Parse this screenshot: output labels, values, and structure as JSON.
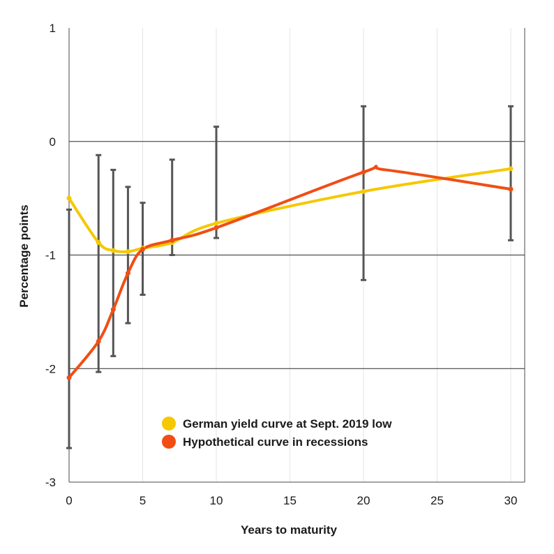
{
  "chart_data": {
    "type": "line",
    "xlabel": "Years to maturity",
    "ylabel": "Percentage points",
    "xlim": [
      0,
      31
    ],
    "ylim": [
      -3,
      1
    ],
    "x_ticks": [
      0,
      5,
      10,
      15,
      20,
      25,
      30
    ],
    "y_ticks": [
      1,
      0,
      -1,
      -2,
      -3
    ],
    "grid": {
      "horizontal": [
        0,
        -1,
        -2
      ],
      "vertical": [
        5,
        10,
        15,
        20,
        25,
        30
      ]
    },
    "legend_position": "lower-center",
    "series": [
      {
        "name": "German yield curve at Sept. 2019 low",
        "color": "#f5c800",
        "x": [
          0,
          2,
          3,
          4,
          5,
          7,
          10,
          20,
          30
        ],
        "y": [
          -0.5,
          -0.89,
          -0.96,
          -0.97,
          -0.94,
          -0.89,
          -0.72,
          -0.44,
          -0.24
        ]
      },
      {
        "name": "Hypothetical curve in recessions",
        "color": "#f04e14",
        "x": [
          0,
          2,
          3,
          4,
          5,
          7,
          10,
          20,
          30
        ],
        "y": [
          -2.08,
          -1.76,
          -1.48,
          -1.16,
          -0.95,
          -0.87,
          -0.76,
          -0.27,
          -0.42
        ],
        "peak": {
          "x": 21.5,
          "y": -0.25
        }
      }
    ],
    "error_bars": {
      "color": "#555555",
      "x": [
        0,
        2,
        3,
        4,
        5,
        7,
        10,
        20,
        30
      ],
      "low": [
        -2.7,
        -2.03,
        -1.89,
        -1.6,
        -1.35,
        -1.0,
        -0.85,
        -1.22,
        -0.87
      ],
      "high": [
        -0.6,
        -0.12,
        -0.25,
        -0.4,
        -0.54,
        -0.16,
        0.13,
        0.31,
        0.31
      ]
    }
  }
}
